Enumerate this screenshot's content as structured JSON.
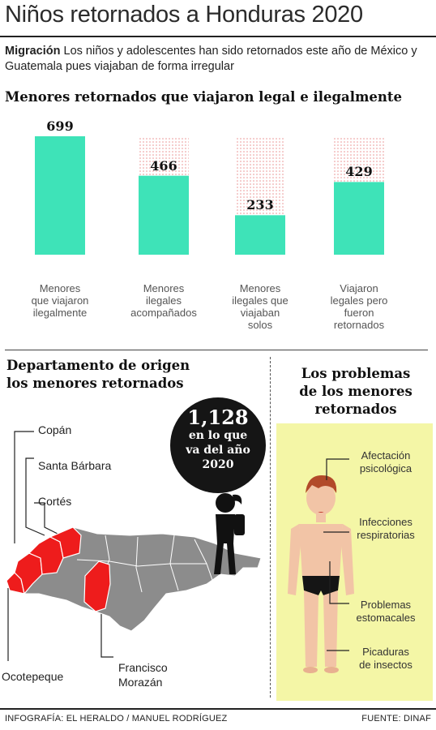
{
  "title": "Niños retornados a Honduras 2020",
  "intro": {
    "lead": "Migración",
    "text": " Los niños y adolescentes han sido retornados este año de México y Guatemala pues viajaban de forma irregular"
  },
  "chart_heading": "Menores retornados que viajaron legal e ilegalmente",
  "chart_data": {
    "type": "bar",
    "title": "Menores retornados que viajaron legal e ilegalmente",
    "categories": [
      "Menores que viajaron ilegalmente",
      "Menores ilegales acompañados",
      "Menores ilegales que viajaban solos",
      "Viajaron legales pero fueron retornados"
    ],
    "category_lines": [
      [
        "Menores",
        "que viajaron",
        "ilegalmente"
      ],
      [
        "Menores",
        "ilegales",
        "acompañados"
      ],
      [
        "Menores",
        "ilegales que",
        "viajaban",
        "solos"
      ],
      [
        "Viajaron",
        "legales pero",
        "fueron",
        "retornados"
      ]
    ],
    "values": [
      699,
      466,
      233,
      429
    ],
    "value_labels": [
      "699",
      "466",
      "233",
      "429"
    ],
    "ylim": [
      0,
      699
    ],
    "grid": false,
    "bar_color": "#3ee3b8",
    "background_pattern_color": "#e88a8a"
  },
  "map_section": {
    "heading_line1": "Departamento de origen",
    "heading_line2": "los menores retornados",
    "badge": {
      "number": "1,128",
      "line1": "en lo que",
      "line2": "va del año",
      "line3": "2020"
    },
    "labels": {
      "copan": "Copán",
      "santa_barbara": "Santa Bárbara",
      "cortes": "Cortés",
      "ocotepeque": "Ocotepeque",
      "francisco_line1": "Francisco",
      "francisco_line2": "Morazán"
    },
    "highlight_color": "#ee1c1c",
    "map_color": "#8c8c8c"
  },
  "problems_section": {
    "heading_line1": "Los problemas",
    "heading_line2": "de los menores",
    "heading_line3": "retornados",
    "items": [
      {
        "line1": "Afectación",
        "line2": "psicológica"
      },
      {
        "line1": "Infecciones",
        "line2": "respiratorias"
      },
      {
        "line1": "Problemas",
        "line2": "estomacales"
      },
      {
        "line1": "Picaduras",
        "line2": "de insectos"
      }
    ],
    "box_color": "#f4f6a6"
  },
  "footer": {
    "credit": "INFOGRAFÍA: EL HERALDO / MANUEL RODRÍGUEZ",
    "source": "FUENTE: DINAF"
  }
}
